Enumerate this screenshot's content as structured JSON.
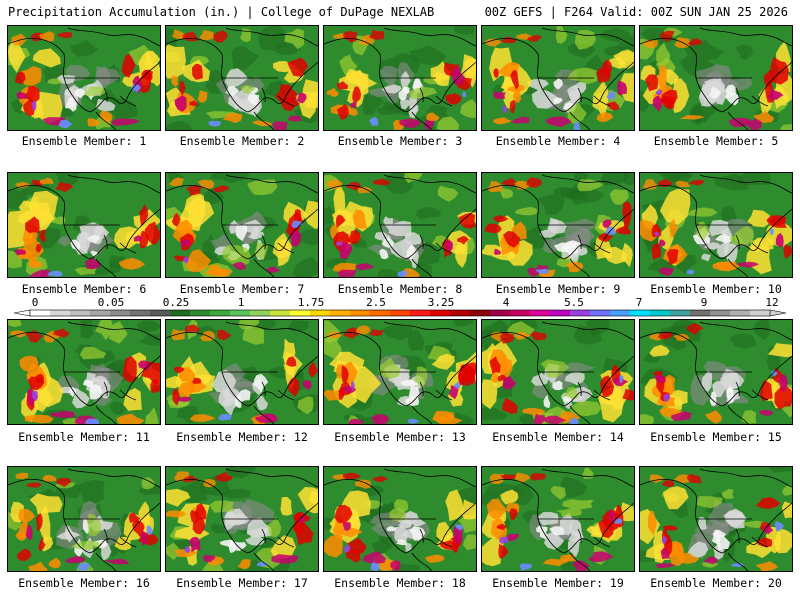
{
  "header": {
    "left": "Precipitation Accumulation (in.) | College of DuPage NEXLAB",
    "right": "00Z GEFS | F264 Valid: 00Z SUN JAN 25 2026"
  },
  "members": [
    {
      "label": "Ensemble Member: 1",
      "seed": 11
    },
    {
      "label": "Ensemble Member: 2",
      "seed": 23
    },
    {
      "label": "Ensemble Member: 3",
      "seed": 37
    },
    {
      "label": "Ensemble Member: 4",
      "seed": 41
    },
    {
      "label": "Ensemble Member: 5",
      "seed": 53
    },
    {
      "label": "Ensemble Member: 6",
      "seed": 67
    },
    {
      "label": "Ensemble Member: 7",
      "seed": 71
    },
    {
      "label": "Ensemble Member: 8",
      "seed": 83
    },
    {
      "label": "Ensemble Member: 9",
      "seed": 97
    },
    {
      "label": "Ensemble Member: 10",
      "seed": 101
    },
    {
      "label": "Ensemble Member: 11",
      "seed": 113
    },
    {
      "label": "Ensemble Member: 12",
      "seed": 127
    },
    {
      "label": "Ensemble Member: 13",
      "seed": 131
    },
    {
      "label": "Ensemble Member: 14",
      "seed": 149
    },
    {
      "label": "Ensemble Member: 15",
      "seed": 151
    },
    {
      "label": "Ensemble Member: 16",
      "seed": 163
    },
    {
      "label": "Ensemble Member: 17",
      "seed": 173
    },
    {
      "label": "Ensemble Member: 18",
      "seed": 181
    },
    {
      "label": "Ensemble Member: 19",
      "seed": 191
    },
    {
      "label": "Ensemble Member: 20",
      "seed": 199
    }
  ],
  "colorbar": {
    "tick_labels": [
      "0",
      "0.05",
      "0.25",
      "1",
      "1.75",
      "2.5",
      "3.25",
      "4",
      "5.5",
      "7",
      "9",
      "12"
    ],
    "colors": [
      "#ffffff",
      "#d9d9d9",
      "#bfbfbf",
      "#a6a6a6",
      "#8c8c8c",
      "#737373",
      "#5a5a5a",
      "#1f6b1f",
      "#2e8b2e",
      "#3ea83e",
      "#5cc45c",
      "#8fd35c",
      "#c8e63c",
      "#ffff33",
      "#ffd700",
      "#ffb000",
      "#ff8c00",
      "#ff6a00",
      "#ff4500",
      "#ff1a1a",
      "#e00000",
      "#b40000",
      "#8b0000",
      "#a0004a",
      "#c80064",
      "#e0009a",
      "#c000c0",
      "#9a40e0",
      "#7070ff",
      "#4aa0ff",
      "#00e0ff",
      "#00c8c8",
      "#40a0a0",
      "#707070",
      "#909090",
      "#b0b0b0",
      "#d0d0d0"
    ]
  },
  "map_colors": {
    "land": "#2e8b2e",
    "land_dark": "#1f6b1f",
    "snow": "#d9d9d9",
    "snow_light": "#f5f5f5",
    "gray": "#8c8c8c",
    "yellow": "#ffe033",
    "orange": "#ff8c00",
    "red": "#e00000",
    "magenta": "#c8006e",
    "purple": "#9a40e0",
    "blue": "#6a8cff",
    "lime": "#9acd32",
    "border": "#000000"
  }
}
